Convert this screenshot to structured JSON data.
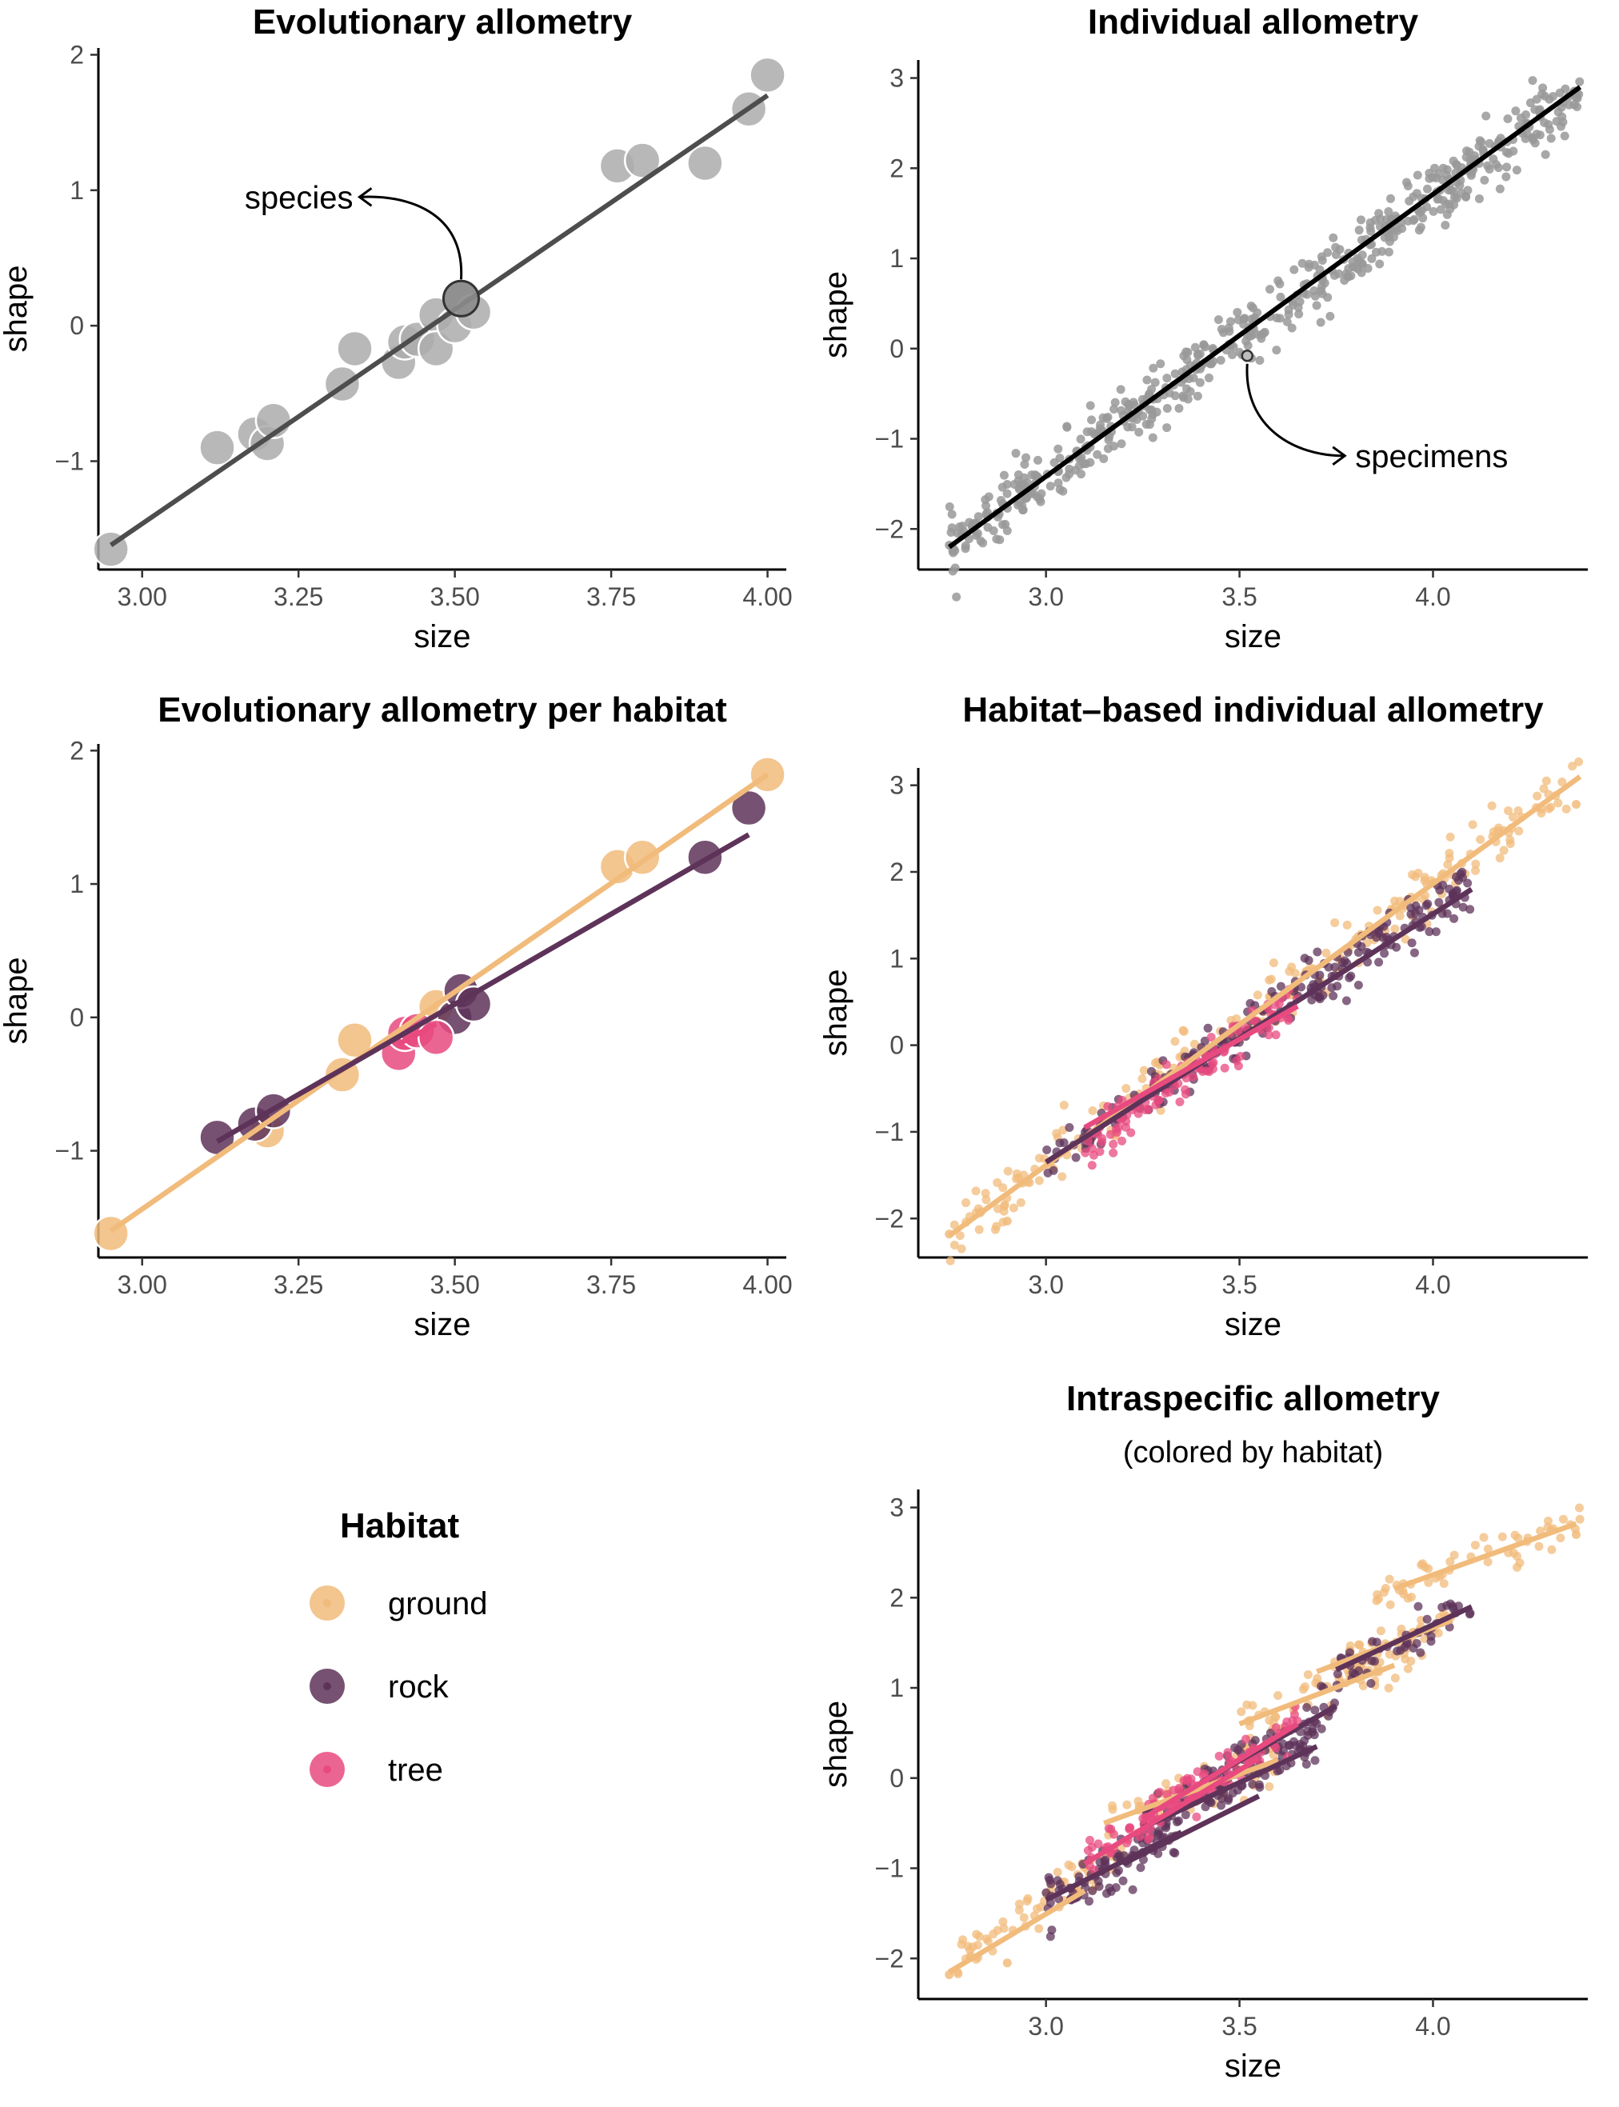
{
  "chart_data": [
    {
      "id": "evo",
      "type": "scatter",
      "title": "Evolutionary allometry",
      "subtitle": "",
      "xlabel": "size",
      "ylabel": "shape",
      "xlim": [
        2.93,
        4.03
      ],
      "ylim": [
        -1.8,
        2.05
      ],
      "xticks": [
        3.0,
        3.25,
        3.5,
        3.75,
        4.0
      ],
      "xtick_labels": [
        "3.00",
        "3.25",
        "3.50",
        "3.75",
        "4.00"
      ],
      "yticks": [
        -1,
        0,
        1,
        2
      ],
      "ytick_labels": [
        "−1",
        "0",
        "1",
        "2"
      ],
      "grid": false,
      "annotation": {
        "text": "species",
        "x": 3.51,
        "y": 0.2
      },
      "points": [
        {
          "x": 2.95,
          "y": -1.65,
          "group": "all"
        },
        {
          "x": 3.12,
          "y": -0.9,
          "group": "all"
        },
        {
          "x": 3.18,
          "y": -0.8,
          "group": "all"
        },
        {
          "x": 3.2,
          "y": -0.87,
          "group": "all"
        },
        {
          "x": 3.21,
          "y": -0.7,
          "group": "all"
        },
        {
          "x": 3.32,
          "y": -0.43,
          "group": "all"
        },
        {
          "x": 3.34,
          "y": -0.17,
          "group": "all"
        },
        {
          "x": 3.41,
          "y": -0.27,
          "group": "all"
        },
        {
          "x": 3.42,
          "y": -0.12,
          "group": "all"
        },
        {
          "x": 3.44,
          "y": -0.1,
          "group": "all"
        },
        {
          "x": 3.47,
          "y": 0.08,
          "group": "all"
        },
        {
          "x": 3.47,
          "y": -0.17,
          "group": "all"
        },
        {
          "x": 3.5,
          "y": 0.0,
          "group": "all"
        },
        {
          "x": 3.51,
          "y": 0.2,
          "group": "all"
        },
        {
          "x": 3.53,
          "y": 0.1,
          "group": "all"
        },
        {
          "x": 3.76,
          "y": 1.18,
          "group": "all"
        },
        {
          "x": 3.8,
          "y": 1.22,
          "group": "all"
        },
        {
          "x": 3.9,
          "y": 1.2,
          "group": "all"
        },
        {
          "x": 3.97,
          "y": 1.6,
          "group": "all"
        },
        {
          "x": 4.0,
          "y": 1.85,
          "group": "all"
        }
      ],
      "lines": [
        {
          "group": "all",
          "x": [
            2.95,
            4.0
          ],
          "y": [
            -1.62,
            1.7
          ]
        }
      ]
    },
    {
      "id": "ind",
      "type": "scatter",
      "title": "Individual allometry",
      "subtitle": "",
      "xlabel": "size",
      "ylabel": "shape",
      "xlim": [
        2.67,
        4.4
      ],
      "ylim": [
        -2.45,
        3.2
      ],
      "xticks": [
        3.0,
        3.5,
        4.0
      ],
      "xtick_labels": [
        "3.0",
        "3.5",
        "4.0"
      ],
      "yticks": [
        -2,
        -1,
        0,
        1,
        2,
        3
      ],
      "ytick_labels": [
        "−2",
        "−1",
        "0",
        "1",
        "2",
        "3"
      ],
      "grid": false,
      "annotation": {
        "text": "specimens",
        "x": 3.52,
        "y": -0.08
      },
      "clouds": [
        {
          "group": "all",
          "count": 560,
          "xmin": 2.75,
          "xmax": 4.38,
          "slope": 3.12,
          "intercept": -10.8,
          "sd": 0.17
        }
      ],
      "points": [
        {
          "x": 2.75,
          "y": -2.18,
          "group": "all"
        },
        {
          "x": 2.9,
          "y": -2.02,
          "group": "all"
        },
        {
          "x": 4.37,
          "y": 2.78,
          "group": "all"
        },
        {
          "x": 3.52,
          "y": -0.08,
          "group": "highlight"
        }
      ],
      "lines": [
        {
          "group": "all",
          "x": [
            2.75,
            4.38
          ],
          "y": [
            -2.2,
            2.9
          ]
        }
      ]
    },
    {
      "id": "evo-hab",
      "type": "scatter",
      "title": "Evolutionary allometry per habitat",
      "subtitle": "",
      "xlabel": "size",
      "ylabel": "shape",
      "xlim": [
        2.93,
        4.03
      ],
      "ylim": [
        -1.8,
        2.05
      ],
      "xticks": [
        3.0,
        3.25,
        3.5,
        3.75,
        4.0
      ],
      "xtick_labels": [
        "3.00",
        "3.25",
        "3.50",
        "3.75",
        "4.00"
      ],
      "yticks": [
        -1,
        0,
        1,
        2
      ],
      "ytick_labels": [
        "−1",
        "0",
        "1",
        "2"
      ],
      "grid": false,
      "points": [
        {
          "x": 2.95,
          "y": -1.62,
          "group": "ground"
        },
        {
          "x": 3.2,
          "y": -0.85,
          "group": "ground"
        },
        {
          "x": 3.32,
          "y": -0.43,
          "group": "ground"
        },
        {
          "x": 3.34,
          "y": -0.17,
          "group": "ground"
        },
        {
          "x": 3.47,
          "y": 0.08,
          "group": "ground"
        },
        {
          "x": 3.76,
          "y": 1.13,
          "group": "ground"
        },
        {
          "x": 3.8,
          "y": 1.2,
          "group": "ground"
        },
        {
          "x": 4.0,
          "y": 1.82,
          "group": "ground"
        },
        {
          "x": 3.12,
          "y": -0.9,
          "group": "rock"
        },
        {
          "x": 3.18,
          "y": -0.8,
          "group": "rock"
        },
        {
          "x": 3.21,
          "y": -0.7,
          "group": "rock"
        },
        {
          "x": 3.5,
          "y": 0.0,
          "group": "rock"
        },
        {
          "x": 3.51,
          "y": 0.2,
          "group": "rock"
        },
        {
          "x": 3.53,
          "y": 0.1,
          "group": "rock"
        },
        {
          "x": 3.9,
          "y": 1.2,
          "group": "rock"
        },
        {
          "x": 3.97,
          "y": 1.57,
          "group": "rock"
        },
        {
          "x": 3.41,
          "y": -0.27,
          "group": "tree"
        },
        {
          "x": 3.42,
          "y": -0.12,
          "group": "tree"
        },
        {
          "x": 3.44,
          "y": -0.1,
          "group": "tree"
        },
        {
          "x": 3.47,
          "y": -0.15,
          "group": "tree"
        }
      ],
      "lines": [
        {
          "group": "ground",
          "x": [
            2.95,
            4.0
          ],
          "y": [
            -1.6,
            1.82
          ]
        },
        {
          "group": "rock",
          "x": [
            3.12,
            3.97
          ],
          "y": [
            -0.93,
            1.37
          ]
        },
        {
          "group": "tree",
          "x": [
            3.41,
            3.47
          ],
          "y": [
            -0.2,
            -0.05
          ]
        }
      ]
    },
    {
      "id": "hab-ind",
      "type": "scatter",
      "title": "Habitat–based individual allometry",
      "subtitle": "",
      "xlabel": "size",
      "ylabel": "shape",
      "xlim": [
        2.67,
        4.4
      ],
      "ylim": [
        -2.45,
        3.2
      ],
      "xticks": [
        3.0,
        3.5,
        4.0
      ],
      "xtick_labels": [
        "3.0",
        "3.5",
        "4.0"
      ],
      "yticks": [
        -2,
        -1,
        0,
        1,
        2,
        3
      ],
      "ytick_labels": [
        "−2",
        "−1",
        "0",
        "1",
        "2",
        "3"
      ],
      "grid": false,
      "clouds": [
        {
          "group": "ground",
          "count": 230,
          "xmin": 2.75,
          "xmax": 4.38,
          "slope": 3.24,
          "intercept": -11.1,
          "sd": 0.17
        },
        {
          "group": "rock",
          "count": 230,
          "xmin": 3.0,
          "xmax": 4.1,
          "slope": 2.95,
          "intercept": -10.2,
          "sd": 0.15
        },
        {
          "group": "tree",
          "count": 110,
          "xmin": 3.1,
          "xmax": 3.65,
          "slope": 3.1,
          "intercept": -10.8,
          "sd": 0.14
        }
      ],
      "points": [
        {
          "x": 2.75,
          "y": -2.18,
          "group": "ground"
        },
        {
          "x": 2.9,
          "y": -2.03,
          "group": "ground"
        },
        {
          "x": 4.37,
          "y": 2.78,
          "group": "ground"
        }
      ],
      "lines": [
        {
          "group": "ground",
          "x": [
            2.75,
            4.38
          ],
          "y": [
            -2.2,
            3.1
          ]
        },
        {
          "group": "rock",
          "x": [
            3.0,
            4.1
          ],
          "y": [
            -1.35,
            1.8
          ]
        },
        {
          "group": "tree",
          "x": [
            3.1,
            3.65
          ],
          "y": [
            -0.95,
            0.45
          ]
        }
      ]
    },
    {
      "id": "intra",
      "type": "scatter",
      "title": "Intraspecific allometry",
      "subtitle": "(colored by habitat)",
      "xlabel": "size",
      "ylabel": "shape",
      "xlim": [
        2.67,
        4.4
      ],
      "ylim": [
        -2.45,
        3.2
      ],
      "xticks": [
        3.0,
        3.5,
        4.0
      ],
      "xtick_labels": [
        "3.0",
        "3.5",
        "4.0"
      ],
      "yticks": [
        -2,
        -1,
        0,
        1,
        2,
        3
      ],
      "ytick_labels": [
        "−2",
        "−1",
        "0",
        "1",
        "2",
        "3"
      ],
      "grid": false,
      "clouds": [
        {
          "group": "ground",
          "count": 70,
          "xmin": 2.75,
          "xmax": 3.2,
          "slope": 2.8,
          "intercept": -9.8,
          "sd": 0.12
        },
        {
          "group": "ground",
          "count": 60,
          "xmin": 3.15,
          "xmax": 3.6,
          "slope": 1.6,
          "intercept": -5.55,
          "sd": 0.12
        },
        {
          "group": "ground",
          "count": 55,
          "xmin": 3.5,
          "xmax": 3.95,
          "slope": 1.6,
          "intercept": -5.0,
          "sd": 0.12
        },
        {
          "group": "ground",
          "count": 50,
          "xmin": 3.7,
          "xmax": 4.05,
          "slope": 1.8,
          "intercept": -5.55,
          "sd": 0.1
        },
        {
          "group": "ground",
          "count": 55,
          "xmin": 3.85,
          "xmax": 4.38,
          "slope": 1.6,
          "intercept": -4.15,
          "sd": 0.1
        },
        {
          "group": "rock",
          "count": 90,
          "xmin": 3.0,
          "xmax": 3.35,
          "slope": 2.2,
          "intercept": -7.95,
          "sd": 0.13
        },
        {
          "group": "rock",
          "count": 80,
          "xmin": 3.25,
          "xmax": 3.7,
          "slope": 2.0,
          "intercept": -7.05,
          "sd": 0.13
        },
        {
          "group": "rock",
          "count": 60,
          "xmin": 3.4,
          "xmax": 3.75,
          "slope": 2.4,
          "intercept": -8.2,
          "sd": 0.12
        },
        {
          "group": "rock",
          "count": 50,
          "xmin": 3.75,
          "xmax": 4.1,
          "slope": 1.9,
          "intercept": -5.95,
          "sd": 0.12
        },
        {
          "group": "tree",
          "count": 60,
          "xmin": 3.1,
          "xmax": 3.55,
          "slope": 2.6,
          "intercept": -9.0,
          "sd": 0.12
        },
        {
          "group": "tree",
          "count": 60,
          "xmin": 3.25,
          "xmax": 3.65,
          "slope": 2.5,
          "intercept": -8.55,
          "sd": 0.12
        }
      ],
      "points": [
        {
          "x": 2.75,
          "y": -2.18,
          "group": "ground"
        },
        {
          "x": 2.9,
          "y": -2.05,
          "group": "ground"
        },
        {
          "x": 4.37,
          "y": 2.7,
          "group": "ground"
        }
      ],
      "lines": [
        {
          "group": "ground",
          "x": [
            2.75,
            3.1
          ],
          "y": [
            -2.15,
            -1.25
          ]
        },
        {
          "group": "ground",
          "x": [
            3.15,
            3.6
          ],
          "y": [
            -0.5,
            0.2
          ]
        },
        {
          "group": "ground",
          "x": [
            3.5,
            3.9
          ],
          "y": [
            0.6,
            1.25
          ]
        },
        {
          "group": "ground",
          "x": [
            3.7,
            4.05
          ],
          "y": [
            1.18,
            1.75
          ]
        },
        {
          "group": "ground",
          "x": [
            3.9,
            4.37
          ],
          "y": [
            2.1,
            2.82
          ]
        },
        {
          "group": "rock",
          "x": [
            3.0,
            3.35
          ],
          "y": [
            -1.35,
            -0.6
          ]
        },
        {
          "group": "rock",
          "x": [
            3.25,
            3.7
          ],
          "y": [
            -0.55,
            0.35
          ]
        },
        {
          "group": "rock",
          "x": [
            3.4,
            3.75
          ],
          "y": [
            -0.05,
            0.8
          ]
        },
        {
          "group": "rock",
          "x": [
            3.75,
            4.1
          ],
          "y": [
            1.2,
            1.9
          ]
        },
        {
          "group": "rock",
          "x": [
            3.2,
            3.55
          ],
          "y": [
            -0.95,
            -0.2
          ]
        },
        {
          "group": "tree",
          "x": [
            3.1,
            3.55
          ],
          "y": [
            -0.95,
            0.22
          ]
        },
        {
          "group": "tree",
          "x": [
            3.25,
            3.65
          ],
          "y": [
            -0.45,
            0.6
          ]
        }
      ]
    }
  ],
  "legend": {
    "title": "Habitat",
    "items": [
      {
        "key": "ground",
        "label": "ground"
      },
      {
        "key": "rock",
        "label": "rock"
      },
      {
        "key": "tree",
        "label": "tree"
      }
    ]
  },
  "colors": {
    "all_points": "#ababab",
    "all_points_small": "#999999",
    "evo_line": "#4d4d4d",
    "ind_line": "#000000",
    "ground": "#f1bb7b",
    "rock": "#5e3359",
    "tree": "#e84a7f",
    "axis": "#000000",
    "tick_label": "#4d4d4d"
  }
}
